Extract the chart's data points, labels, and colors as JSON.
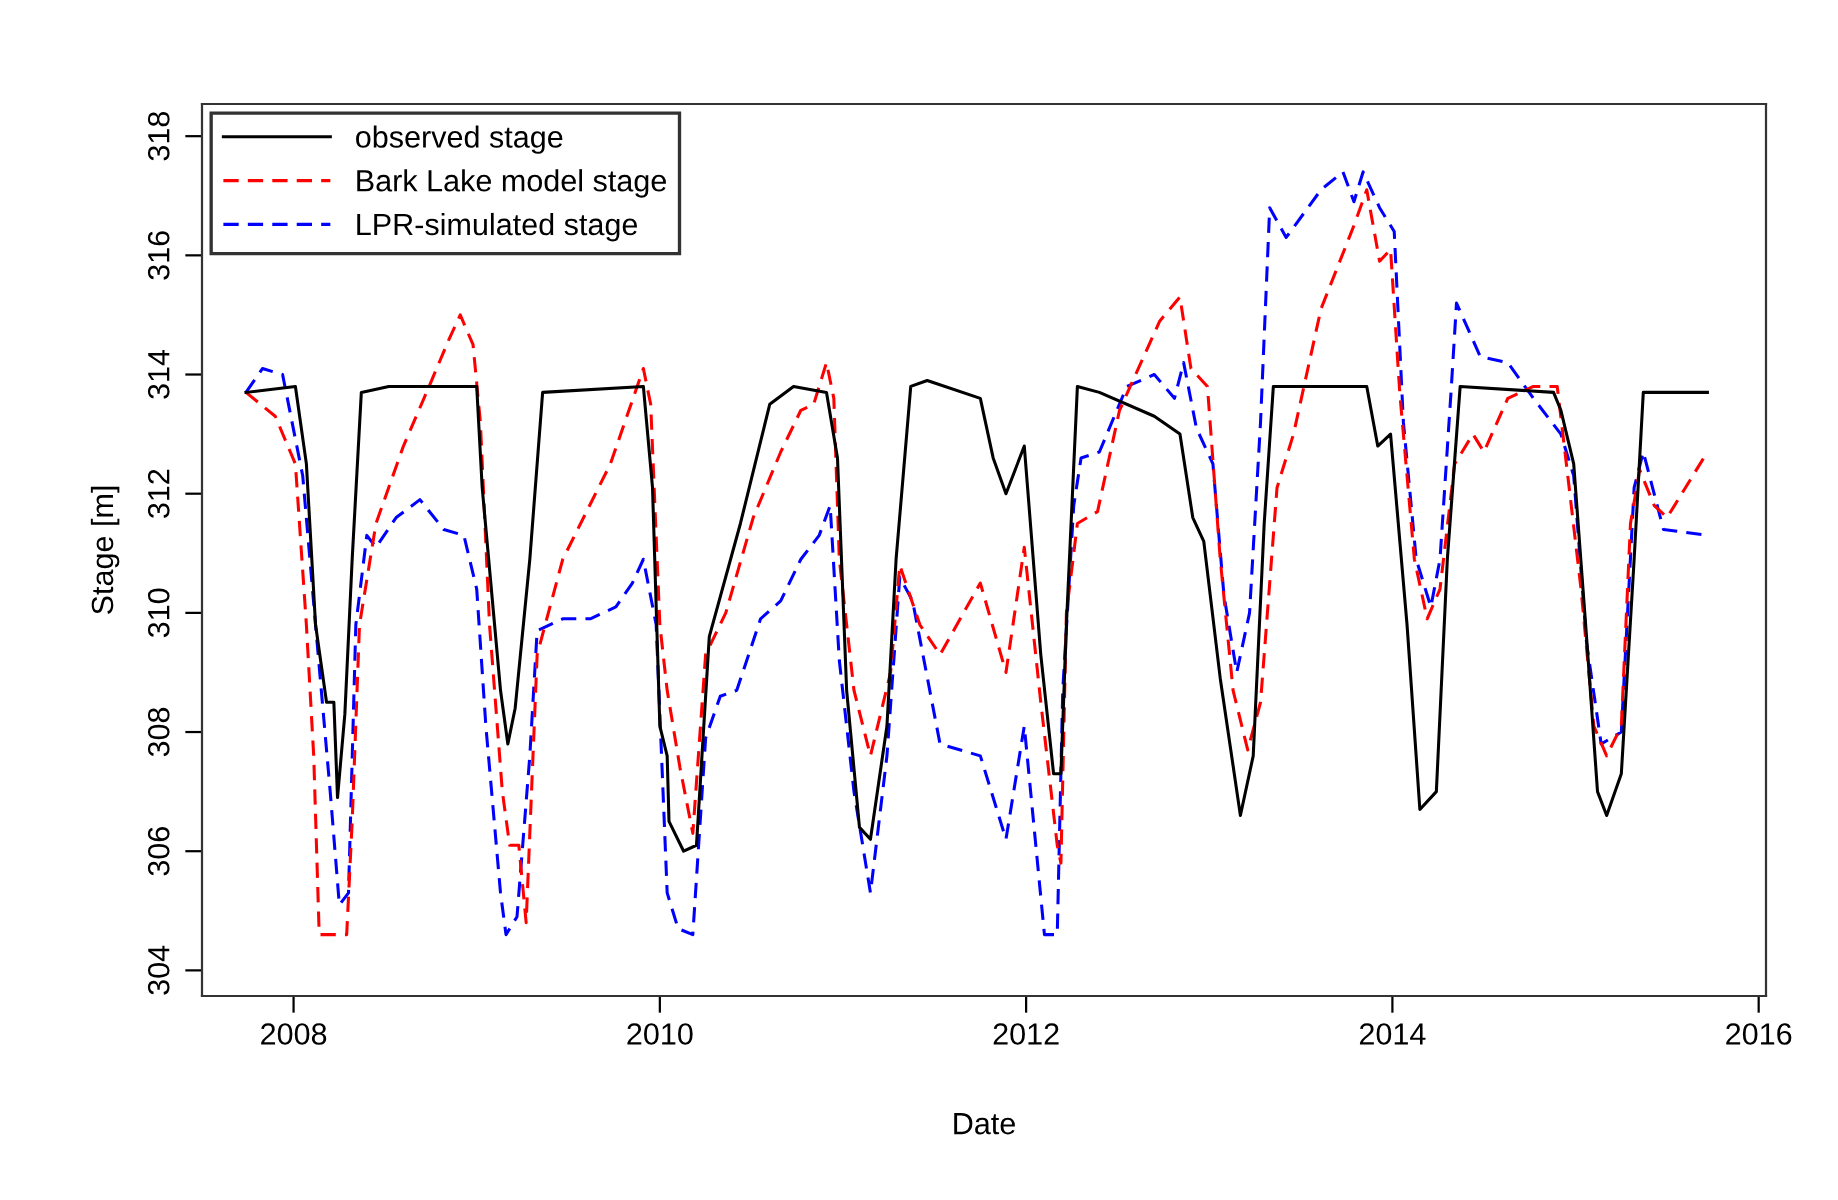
{
  "chart_data": {
    "type": "line",
    "xlabel": "Date",
    "ylabel": "Stage [m]",
    "xlim": [
      2007.5,
      2016.04
    ],
    "ylim": [
      303.57,
      318.54
    ],
    "xticks": [
      2008,
      2010,
      2012,
      2014,
      2016
    ],
    "yticks": [
      304,
      306,
      308,
      310,
      312,
      314,
      316,
      318
    ],
    "grid": false,
    "legend": "top left",
    "marker": "none",
    "series": [
      {
        "name": "observed stage",
        "color": "#000000",
        "line_style": "solid",
        "x": [
          2007.74,
          2008.01,
          2008.07,
          2008.12,
          2008.18,
          2008.22,
          2008.24,
          2008.28,
          2008.32,
          2008.37,
          2008.52,
          2009.0,
          2009.03,
          2009.13,
          2009.17,
          2009.21,
          2009.29,
          2009.36,
          2009.91,
          2009.96,
          2010.0,
          2010.04,
          2010.05,
          2010.13,
          2010.2,
          2010.27,
          2010.44,
          2010.6,
          2010.73,
          2010.91,
          2010.97,
          2011.02,
          2011.09,
          2011.15,
          2011.24,
          2011.29,
          2011.37,
          2011.46,
          2011.75,
          2011.82,
          2011.89,
          2011.99,
          2012.08,
          2012.15,
          2012.19,
          2012.22,
          2012.28,
          2012.4,
          2012.7,
          2012.84,
          2012.91,
          2012.97,
          2013.06,
          2013.17,
          2013.24,
          2013.3,
          2013.35,
          2013.86,
          2013.92,
          2013.99,
          2014.08,
          2014.15,
          2014.24,
          2014.3,
          2014.37,
          2014.88,
          2014.92,
          2014.99,
          2015.06,
          2015.12,
          2015.17,
          2015.25,
          2015.32,
          2015.37,
          2015.57,
          2015.72
        ],
        "values": [
          313.7,
          313.8,
          312.5,
          309.8,
          308.5,
          308.5,
          306.9,
          308.3,
          310.9,
          313.7,
          313.8,
          313.8,
          312.1,
          308.7,
          307.8,
          308.4,
          310.9,
          313.7,
          313.8,
          312.1,
          308.1,
          307.6,
          306.5,
          306.0,
          306.1,
          309.6,
          311.5,
          313.5,
          313.8,
          313.7,
          312.6,
          308.7,
          306.4,
          306.2,
          308.1,
          310.9,
          313.8,
          313.9,
          313.6,
          312.6,
          312.0,
          312.8,
          309.3,
          307.3,
          307.3,
          309.8,
          313.8,
          313.7,
          313.3,
          313.0,
          311.6,
          311.2,
          308.9,
          306.6,
          307.6,
          311.5,
          313.8,
          313.8,
          312.8,
          313.0,
          309.8,
          306.7,
          307.0,
          310.9,
          313.8,
          313.7,
          313.4,
          312.5,
          309.6,
          307.0,
          306.6,
          307.3,
          310.9,
          313.7,
          313.7,
          313.7
        ]
      },
      {
        "name": "Bark Lake model stage",
        "color": "#ff0000",
        "line_style": "dashed",
        "x": [
          2007.74,
          2007.9,
          2008.01,
          2008.07,
          2008.11,
          2008.14,
          2008.29,
          2008.32,
          2008.36,
          2008.45,
          2008.6,
          2008.74,
          2008.85,
          2008.91,
          2008.98,
          2009.02,
          2009.07,
          2009.14,
          2009.18,
          2009.23,
          2009.27,
          2009.33,
          2009.47,
          2009.73,
          2009.91,
          2009.95,
          2010.0,
          2010.04,
          2010.11,
          2010.18,
          2010.25,
          2010.36,
          2010.51,
          2010.66,
          2010.77,
          2010.84,
          2010.91,
          2010.95,
          2010.98,
          2011.06,
          2011.15,
          2011.26,
          2011.31,
          2011.42,
          2011.53,
          2011.75,
          2011.89,
          2011.99,
          2012.08,
          2012.17,
          2012.19,
          2012.22,
          2012.28,
          2012.39,
          2012.51,
          2012.73,
          2012.84,
          2012.9,
          2012.99,
          2013.06,
          2013.13,
          2013.21,
          2013.28,
          2013.37,
          2013.46,
          2013.61,
          2013.79,
          2013.86,
          2013.93,
          2013.99,
          2014.04,
          2014.12,
          2014.19,
          2014.26,
          2014.34,
          2014.44,
          2014.5,
          2014.63,
          2014.77,
          2014.9,
          2014.95,
          2015.03,
          2015.1,
          2015.17,
          2015.25,
          2015.3,
          2015.35,
          2015.43,
          2015.5,
          2015.72
        ],
        "values": [
          313.7,
          313.3,
          312.5,
          309.8,
          307.6,
          304.6,
          304.6,
          306.5,
          309.8,
          311.5,
          312.8,
          313.8,
          314.6,
          315.0,
          314.5,
          313.2,
          309.8,
          307.0,
          306.1,
          306.1,
          304.8,
          309.3,
          310.9,
          312.5,
          314.1,
          313.5,
          309.8,
          308.7,
          307.4,
          306.3,
          309.3,
          310.0,
          311.6,
          312.7,
          313.4,
          313.5,
          314.2,
          313.6,
          310.9,
          308.7,
          307.6,
          309.0,
          310.8,
          309.8,
          309.3,
          310.5,
          309.0,
          311.1,
          308.5,
          306.1,
          305.8,
          310.0,
          311.5,
          311.7,
          313.4,
          314.9,
          315.3,
          314.1,
          313.8,
          310.9,
          308.7,
          307.7,
          308.5,
          312.1,
          313.0,
          315.1,
          316.5,
          317.1,
          315.9,
          316.1,
          313.7,
          310.9,
          309.9,
          310.4,
          312.5,
          313.0,
          312.7,
          313.6,
          313.8,
          313.8,
          312.5,
          310.4,
          308.1,
          307.6,
          308.1,
          311.5,
          312.4,
          311.8,
          311.6,
          312.7
        ]
      },
      {
        "name": "LPR-simulated stage",
        "color": "#0000ff",
        "line_style": "dashed",
        "x": [
          2007.74,
          2007.83,
          2007.94,
          2008.05,
          2008.12,
          2008.2,
          2008.25,
          2008.3,
          2008.34,
          2008.4,
          2008.45,
          2008.56,
          2008.69,
          2008.82,
          2008.93,
          2009.0,
          2009.05,
          2009.13,
          2009.16,
          2009.22,
          2009.29,
          2009.33,
          2009.47,
          2009.62,
          2009.76,
          2009.85,
          2009.91,
          2009.98,
          2010.04,
          2010.1,
          2010.18,
          2010.25,
          2010.33,
          2010.42,
          2010.55,
          2010.66,
          2010.77,
          2010.87,
          2010.93,
          2010.98,
          2011.06,
          2011.15,
          2011.24,
          2011.31,
          2011.38,
          2011.53,
          2011.75,
          2011.89,
          2011.99,
          2012.1,
          2012.17,
          2012.2,
          2012.26,
          2012.3,
          2012.4,
          2012.55,
          2012.7,
          2012.81,
          2012.86,
          2012.93,
          2013.02,
          2013.08,
          2013.15,
          2013.22,
          2013.28,
          2013.33,
          2013.42,
          2013.61,
          2013.73,
          2013.79,
          2013.84,
          2013.93,
          2014.01,
          2014.06,
          2014.13,
          2014.21,
          2014.26,
          2014.32,
          2014.35,
          2014.48,
          2014.63,
          2014.77,
          2014.92,
          2014.99,
          2015.06,
          2015.14,
          2015.25,
          2015.32,
          2015.37,
          2015.48,
          2015.72
        ],
        "values": [
          313.7,
          314.1,
          314.0,
          312.3,
          309.8,
          307.0,
          305.1,
          305.3,
          309.8,
          311.3,
          311.1,
          311.6,
          311.9,
          311.4,
          311.3,
          310.4,
          308.1,
          305.3,
          304.6,
          304.9,
          307.6,
          309.7,
          309.9,
          309.9,
          310.1,
          310.5,
          310.9,
          309.8,
          305.3,
          304.7,
          304.6,
          307.9,
          308.6,
          308.7,
          309.9,
          310.2,
          310.9,
          311.3,
          311.8,
          309.2,
          307.0,
          305.3,
          307.6,
          310.6,
          310.2,
          307.8,
          307.6,
          306.2,
          308.1,
          304.6,
          304.6,
          308.7,
          311.8,
          312.6,
          312.7,
          313.8,
          314.0,
          313.6,
          314.2,
          313.1,
          312.5,
          310.3,
          309.0,
          310.0,
          313.2,
          316.8,
          316.3,
          317.1,
          317.4,
          316.9,
          317.4,
          316.8,
          316.4,
          313.2,
          310.9,
          310.1,
          310.9,
          313.7,
          315.2,
          314.3,
          314.2,
          313.6,
          313.0,
          312.3,
          309.5,
          307.8,
          308.0,
          312.1,
          312.7,
          311.4,
          311.3
        ]
      }
    ]
  }
}
